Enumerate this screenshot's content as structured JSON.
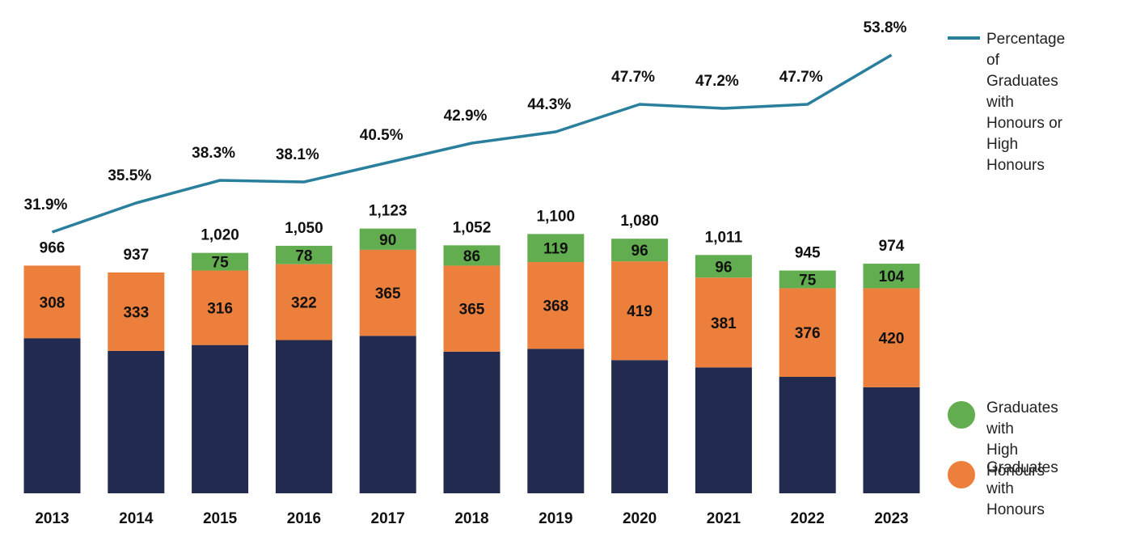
{
  "chart_data": {
    "type": "bar",
    "stacked": true,
    "categories": [
      "2013",
      "2014",
      "2015",
      "2016",
      "2017",
      "2018",
      "2019",
      "2020",
      "2021",
      "2022",
      "2023"
    ],
    "totals": [
      966,
      937,
      1020,
      1050,
      1123,
      1052,
      1100,
      1080,
      1011,
      945,
      974
    ],
    "totals_labels": [
      "966",
      "937",
      "1,020",
      "1,050",
      "1,123",
      "1,052",
      "1,100",
      "1,080",
      "1,011",
      "945",
      "974"
    ],
    "series": [
      {
        "values": [
          658,
          604,
          629,
          650,
          668,
          601,
          613,
          565,
          534,
          494,
          450
        ],
        "color": "#222b4f"
      },
      {
        "name": "Graduates with\nHonours",
        "values": [
          308,
          333,
          316,
          322,
          365,
          365,
          368,
          419,
          381,
          376,
          420
        ],
        "color": "#ec7f3c"
      },
      {
        "name": "Graduates with\nHigh Honours",
        "values": [
          null,
          null,
          75,
          78,
          90,
          86,
          119,
          96,
          96,
          75,
          104
        ],
        "color": "#62ad4f"
      }
    ],
    "line_series": {
      "name": "Percentage of\nGraduates with\nHonours or\nHigh Honours",
      "values": [
        31.9,
        35.5,
        38.3,
        38.1,
        40.5,
        42.9,
        44.3,
        47.7,
        47.2,
        47.7,
        53.8
      ],
      "labels": [
        "31.9%",
        "35.5%",
        "38.3%",
        "38.1%",
        "40.5%",
        "42.9%",
        "44.3%",
        "47.7%",
        "47.2%",
        "47.7%",
        "53.8%"
      ],
      "color": "#2a7f9c"
    },
    "title": "",
    "xlabel": "",
    "ylabel": "",
    "grid": false,
    "legend_position": "right"
  }
}
